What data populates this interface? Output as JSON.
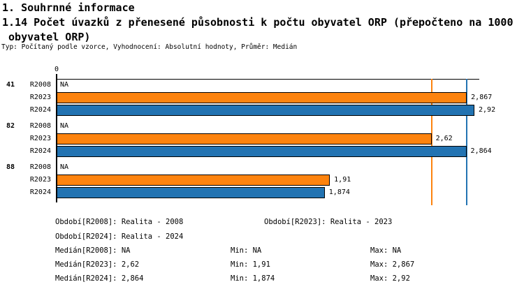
{
  "header": {
    "section_title": "1. Souhrnné informace",
    "chart_title_line1": "1.14 Počet úvazků z přenesené působnosti k počtu obyvatel ORP (přepočteno na 1000",
    "chart_title_line2": " obyvatel ORP)",
    "subtitle": "Typ: Počítaný podle vzorce, Vyhodnocení: Absolutní hodnoty, Průměr: Medián"
  },
  "chart_data": {
    "type": "bar",
    "orientation": "horizontal",
    "x_axis": {
      "zero_label": "0",
      "xlim": [
        0,
        2.955
      ],
      "grid": false
    },
    "groups": [
      {
        "label": "41",
        "bars": [
          {
            "series": "R2008",
            "value": null,
            "display": "NA"
          },
          {
            "series": "R2023",
            "value": 2.867,
            "display": "2,867"
          },
          {
            "series": "R2024",
            "value": 2.92,
            "display": "2,92"
          }
        ]
      },
      {
        "label": "82",
        "bars": [
          {
            "series": "R2008",
            "value": null,
            "display": "NA"
          },
          {
            "series": "R2023",
            "value": 2.62,
            "display": "2,62"
          },
          {
            "series": "R2024",
            "value": 2.864,
            "display": "2,864"
          }
        ]
      },
      {
        "label": "88",
        "bars": [
          {
            "series": "R2008",
            "value": null,
            "display": "NA"
          },
          {
            "series": "R2023",
            "value": 1.91,
            "display": "1,91"
          },
          {
            "series": "R2024",
            "value": 1.874,
            "display": "1,874"
          }
        ]
      }
    ],
    "series_colors": {
      "R2023": "#fd830e",
      "R2024": "#2273b2"
    },
    "reference_lines": [
      {
        "name": "median-r2023",
        "value": 2.62,
        "color": "#fd830e"
      },
      {
        "name": "median-r2024",
        "value": 2.864,
        "color": "#2273b2"
      }
    ]
  },
  "legend": {
    "obdobi_r2008": "Období[R2008]: Realita - 2008",
    "obdobi_r2023": "Období[R2023]: Realita - 2023",
    "obdobi_r2024": "Období[R2024]: Realita - 2024",
    "median_r2008": "Medián[R2008]: NA",
    "min_r2008": "Min: NA",
    "max_r2008": "Max: NA",
    "median_r2023": "Medián[R2023]: 2,62",
    "min_r2023": "Min: 1,91",
    "max_r2023": "Max: 2,867",
    "median_r2024": "Medián[R2024]: 2,864",
    "min_r2024": "Min: 1,874",
    "max_r2024": "Max: 2,92"
  }
}
